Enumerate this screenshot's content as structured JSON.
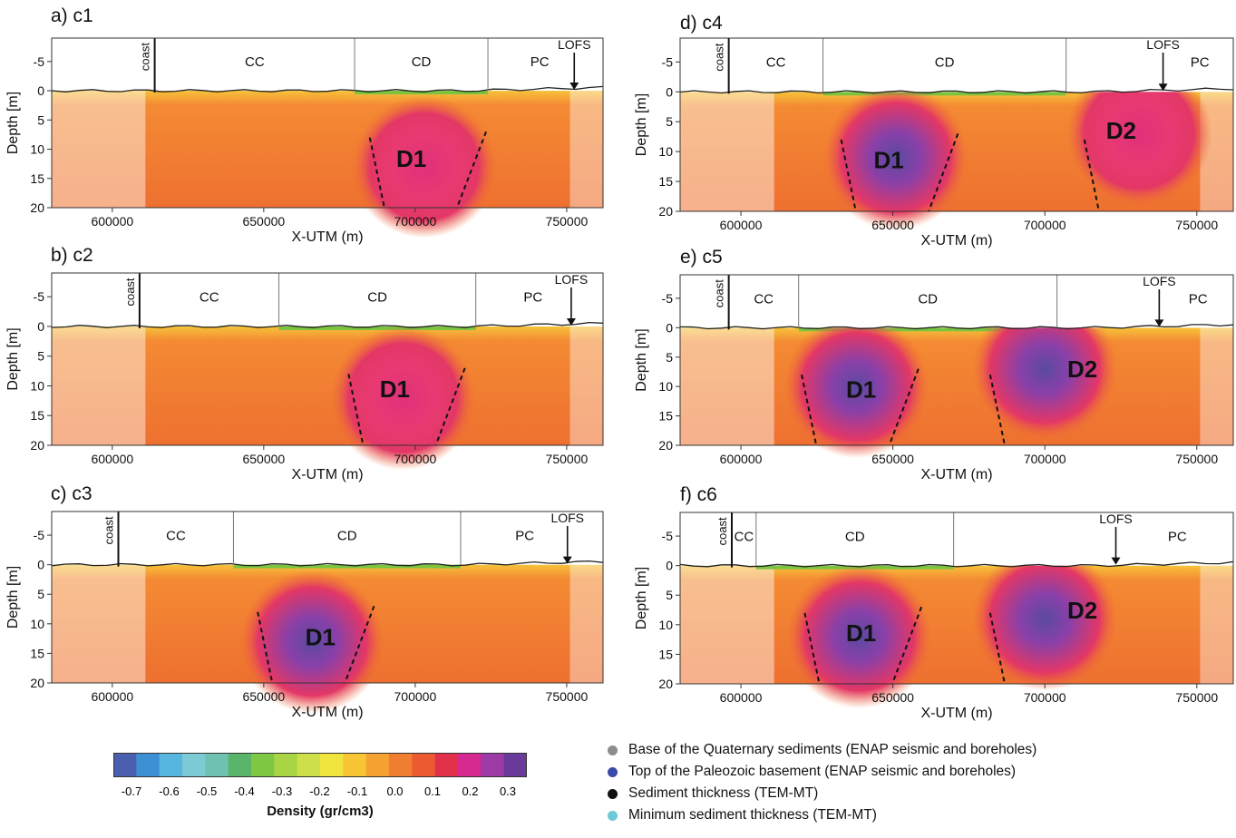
{
  "figure": {
    "panels": [
      {
        "id": "a",
        "title": "a) c1",
        "regions": [
          "coast",
          "CC",
          "CD",
          "PC"
        ],
        "fault_label": "LOFS",
        "anomalies": [
          "D1"
        ],
        "xlabel": "X-UTM (m)",
        "ylabel": "Depth [m]"
      },
      {
        "id": "b",
        "title": "b) c2",
        "regions": [
          "coast",
          "CC",
          "CD",
          "PC"
        ],
        "fault_label": "LOFS",
        "anomalies": [
          "D1"
        ],
        "xlabel": "X-UTM (m)",
        "ylabel": "Depth [m]"
      },
      {
        "id": "c",
        "title": "c) c3",
        "regions": [
          "coast",
          "CC",
          "CD",
          "PC"
        ],
        "fault_label": "LOFS",
        "anomalies": [
          "D1"
        ],
        "xlabel": "X-UTM (m)",
        "ylabel": "Depth [m]"
      },
      {
        "id": "d",
        "title": "d) c4",
        "regions": [
          "coast",
          "CC",
          "CD",
          "PC"
        ],
        "fault_label": "LOFS",
        "anomalies": [
          "D1",
          "D2"
        ],
        "xlabel": "X-UTM (m)",
        "ylabel": "Depth [m]"
      },
      {
        "id": "e",
        "title": "e) c5",
        "regions": [
          "coast",
          "CC",
          "CD",
          "PC"
        ],
        "fault_label": "LOFS",
        "anomalies": [
          "D1",
          "D2"
        ],
        "xlabel": "X-UTM (m)",
        "ylabel": "Depth [m]"
      },
      {
        "id": "f",
        "title": "f) c6",
        "regions": [
          "coast",
          "CC",
          "CD",
          "PC"
        ],
        "fault_label": "LOFS",
        "anomalies": [
          "D1",
          "D2"
        ],
        "xlabel": "X-UTM (m)",
        "ylabel": "Depth [m]"
      }
    ],
    "colorbar": {
      "label": "Density (gr/cm3)",
      "ticks": [
        "-0.7",
        "-0.6",
        "-0.5",
        "-0.4",
        "-0.3",
        "-0.2",
        "-0.1",
        "0.0",
        "0.1",
        "0.2",
        "0.3"
      ]
    },
    "legend": [
      {
        "label": "Base of the Quaternary sediments (ENAP seismic and boreholes)",
        "color": "#8c8c8c"
      },
      {
        "label": "Top of the Paleozoic basement (ENAP seismic and boreholes)",
        "color": "#3b49a8"
      },
      {
        "label": "Sediment thickness (TEM-MT)",
        "color": "#111111"
      },
      {
        "label": "Minimum sediment thickness (TEM-MT)",
        "color": "#6cc9d6"
      }
    ]
  },
  "chart_data": [
    {
      "type": "heatmap",
      "title": "a) c1",
      "xlabel": "X-UTM (m)",
      "ylabel": "Depth [m]",
      "xlim": [
        580000,
        762000
      ],
      "ylim": [
        20,
        -9
      ],
      "x_ticks": [
        600000,
        650000,
        700000,
        750000
      ],
      "y_ticks": [
        -5,
        0,
        5,
        10,
        15,
        20
      ],
      "region_boundaries_x": [
        614000,
        680000,
        724000
      ],
      "anomalies": [
        {
          "name": "D1",
          "x": 703000,
          "depth": 13,
          "min_density": 0.1
        }
      ]
    },
    {
      "type": "heatmap",
      "title": "b) c2",
      "xlabel": "X-UTM (m)",
      "ylabel": "Depth [m]",
      "xlim": [
        580000,
        762000
      ],
      "ylim": [
        20,
        -9
      ],
      "x_ticks": [
        600000,
        650000,
        700000,
        750000
      ],
      "y_ticks": [
        -5,
        0,
        5,
        10,
        15,
        20
      ],
      "region_boundaries_x": [
        609000,
        655000,
        720000
      ],
      "anomalies": [
        {
          "name": "D1",
          "x": 696000,
          "depth": 12,
          "min_density": 0.1
        }
      ]
    },
    {
      "type": "heatmap",
      "title": "c) c3",
      "xlabel": "X-UTM (m)",
      "ylabel": "Depth [m]",
      "xlim": [
        580000,
        762000
      ],
      "ylim": [
        20,
        -9
      ],
      "x_ticks": [
        600000,
        650000,
        700000,
        750000
      ],
      "y_ticks": [
        -5,
        0,
        5,
        10,
        15,
        20
      ],
      "region_boundaries_x": [
        602000,
        640000,
        715000
      ],
      "anomalies": [
        {
          "name": "D1",
          "x": 666000,
          "depth": 13,
          "min_density": 0.3
        }
      ]
    },
    {
      "type": "heatmap",
      "title": "d) c4",
      "xlabel": "X-UTM (m)",
      "ylabel": "Depth [m]",
      "xlim": [
        580000,
        762000
      ],
      "ylim": [
        20,
        -9
      ],
      "x_ticks": [
        600000,
        650000,
        700000,
        750000
      ],
      "y_ticks": [
        -5,
        0,
        5,
        10,
        15,
        20
      ],
      "region_boundaries_x": [
        596000,
        627000,
        707000
      ],
      "anomalies": [
        {
          "name": "D1",
          "x": 651000,
          "depth": 11,
          "min_density": 0.3
        },
        {
          "name": "D2",
          "x": 731000,
          "depth": 7,
          "min_density": 0.1
        }
      ]
    },
    {
      "type": "heatmap",
      "title": "e) c5",
      "xlabel": "X-UTM (m)",
      "ylabel": "Depth [m]",
      "xlim": [
        580000,
        762000
      ],
      "ylim": [
        20,
        -9
      ],
      "x_ticks": [
        600000,
        650000,
        700000,
        750000
      ],
      "y_ticks": [
        -5,
        0,
        5,
        10,
        15,
        20
      ],
      "region_boundaries_x": [
        596000,
        619000,
        704000
      ],
      "anomalies": [
        {
          "name": "D1",
          "x": 638000,
          "depth": 10,
          "min_density": 0.3
        },
        {
          "name": "D2",
          "x": 700000,
          "depth": 7,
          "min_density": 0.3
        }
      ]
    },
    {
      "type": "heatmap",
      "title": "f) c6",
      "xlabel": "X-UTM (m)",
      "ylabel": "Depth [m]",
      "xlim": [
        580000,
        762000
      ],
      "ylim": [
        20,
        -9
      ],
      "x_ticks": [
        600000,
        650000,
        700000,
        750000
      ],
      "y_ticks": [
        -5,
        0,
        5,
        10,
        15,
        20
      ],
      "region_boundaries_x": [
        597000,
        605000,
        670000
      ],
      "anomalies": [
        {
          "name": "D1",
          "x": 639000,
          "depth": 12,
          "min_density": 0.3
        },
        {
          "name": "D2",
          "x": 700000,
          "depth": 9,
          "min_density": 0.3
        }
      ]
    }
  ]
}
